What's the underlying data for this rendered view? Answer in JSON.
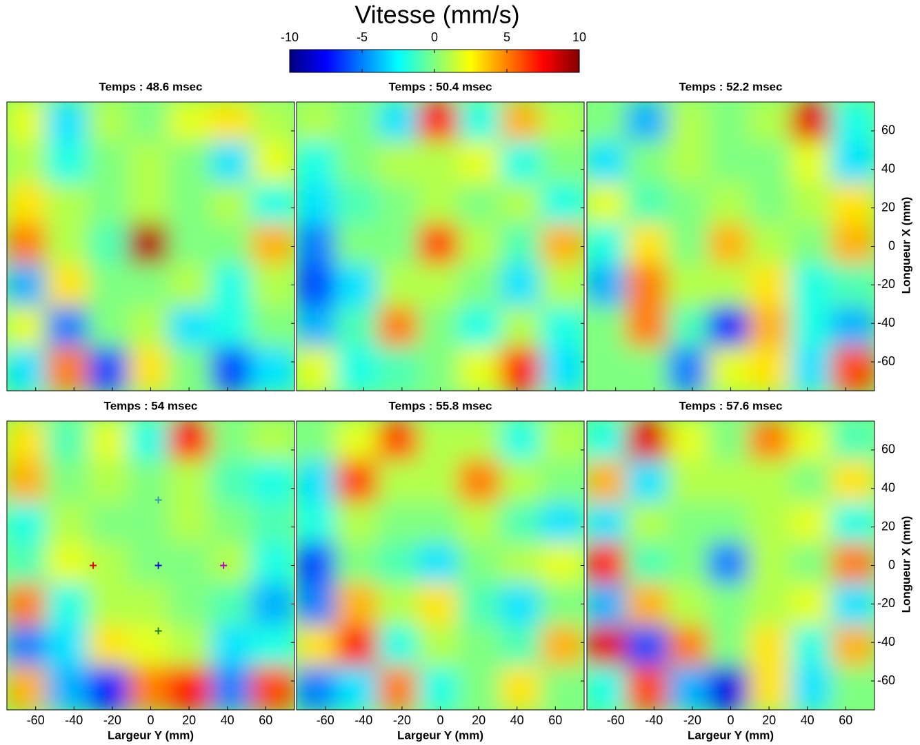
{
  "chart_data": {
    "type": "heatmap",
    "title": "Vitesse (mm/s)",
    "colormap": "jet",
    "clim": [
      -10,
      10
    ],
    "cticks": [
      -10,
      -5,
      0,
      5,
      10
    ],
    "xlabel": "Largeur Y (mm)",
    "ylabel": "Longueur X (mm)",
    "xlim": [
      -75,
      75
    ],
    "xticks": [
      -60,
      -40,
      -20,
      0,
      20,
      40,
      60
    ],
    "ylim": [
      -75,
      75
    ],
    "yticks": [
      -60,
      -40,
      -20,
      0,
      20,
      40,
      60
    ],
    "grid_x": [
      -64,
      -43,
      -21,
      0,
      21,
      43,
      64
    ],
    "grid_y": [
      64,
      43,
      21,
      0,
      -21,
      -43,
      -64
    ],
    "panels": [
      {
        "title": "Temps : 48.6 msec",
        "values": [
          [
            2,
            -3,
            1,
            0,
            2,
            3,
            1
          ],
          [
            1,
            -2,
            0,
            1,
            0,
            -3,
            2
          ],
          [
            3,
            1,
            0,
            1,
            0,
            1,
            -2
          ],
          [
            5,
            1,
            -1,
            9,
            0,
            0,
            4
          ],
          [
            -4,
            3,
            0,
            0,
            1,
            -2,
            1
          ],
          [
            2,
            -5,
            0,
            1,
            -3,
            -2,
            0
          ],
          [
            -3,
            5,
            -6,
            3,
            0,
            -6,
            -3
          ]
        ]
      },
      {
        "title": "Temps : 50.4 msec",
        "values": [
          [
            1,
            0,
            -3,
            7,
            -2,
            4,
            1
          ],
          [
            -2,
            0,
            1,
            1,
            2,
            -2,
            0
          ],
          [
            -3,
            -1,
            0,
            1,
            0,
            1,
            -2
          ],
          [
            -5,
            0,
            0,
            6,
            1,
            -1,
            4
          ],
          [
            -6,
            -3,
            1,
            1,
            0,
            -3,
            1
          ],
          [
            -4,
            -1,
            5,
            0,
            -2,
            1,
            -2
          ],
          [
            2,
            -2,
            -1,
            0,
            2,
            7,
            -3
          ]
        ]
      },
      {
        "title": "Temps : 52.2 msec",
        "values": [
          [
            0,
            -4,
            1,
            0,
            1,
            8,
            -2
          ],
          [
            -3,
            0,
            1,
            0,
            0,
            2,
            -3
          ],
          [
            2,
            -1,
            0,
            1,
            0,
            1,
            3
          ],
          [
            -2,
            3,
            0,
            4,
            1,
            0,
            4
          ],
          [
            -4,
            5,
            1,
            1,
            3,
            -2,
            -1
          ],
          [
            0,
            5,
            -1,
            -7,
            4,
            -2,
            -4
          ],
          [
            0,
            0,
            -5,
            2,
            3,
            -3,
            6
          ]
        ]
      },
      {
        "title": "Temps : 54 msec",
        "values": [
          [
            3,
            -1,
            2,
            -2,
            7,
            0,
            1
          ],
          [
            4,
            0,
            1,
            0,
            1,
            -1,
            -2
          ],
          [
            -2,
            1,
            0,
            0,
            1,
            0,
            -1
          ],
          [
            -1,
            2,
            1,
            0,
            0,
            1,
            -2
          ],
          [
            5,
            -2,
            1,
            1,
            0,
            -1,
            -4
          ],
          [
            -5,
            -3,
            3,
            2,
            1,
            -3,
            -2
          ],
          [
            4,
            -4,
            -7,
            5,
            7,
            -5,
            6
          ]
        ],
        "markers": [
          {
            "x": -30,
            "y": 0,
            "color": "#e00000"
          },
          {
            "x": 4,
            "y": 0,
            "color": "#1010d0"
          },
          {
            "x": 4,
            "y": 34,
            "color": "#30a0a0"
          },
          {
            "x": 4,
            "y": -34,
            "color": "#208020"
          },
          {
            "x": 38,
            "y": 0,
            "color": "#c000c0"
          }
        ]
      },
      {
        "title": "Temps : 55.8 msec",
        "values": [
          [
            0,
            2,
            6,
            1,
            1,
            -2,
            1
          ],
          [
            -3,
            6,
            1,
            1,
            5,
            1,
            0
          ],
          [
            -2,
            1,
            0,
            0,
            1,
            -1,
            -3
          ],
          [
            -6,
            0,
            -1,
            -3,
            0,
            1,
            2
          ],
          [
            -5,
            4,
            1,
            3,
            -1,
            -3,
            0
          ],
          [
            3,
            7,
            -2,
            1,
            0,
            -1,
            4
          ],
          [
            -5,
            -3,
            5,
            -2,
            0,
            3,
            0
          ]
        ]
      },
      {
        "title": "Temps : 57.6 msec",
        "values": [
          [
            -2,
            8,
            2,
            0,
            5,
            2,
            -1
          ],
          [
            4,
            -3,
            1,
            1,
            1,
            0,
            3
          ],
          [
            -3,
            1,
            0,
            0,
            1,
            2,
            -2
          ],
          [
            7,
            -1,
            0,
            -5,
            1,
            0,
            5
          ],
          [
            -4,
            4,
            1,
            0,
            1,
            2,
            -3
          ],
          [
            8,
            -6,
            5,
            0,
            3,
            -2,
            4
          ],
          [
            -2,
            6,
            -4,
            -8,
            3,
            -3,
            0
          ]
        ]
      }
    ]
  }
}
